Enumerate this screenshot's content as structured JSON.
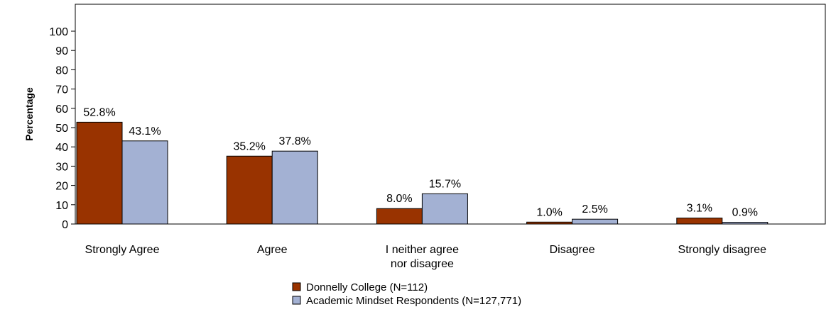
{
  "chart_data": {
    "type": "bar",
    "ylabel": "Percentage",
    "xlabel": "",
    "ylim": [
      0,
      100
    ],
    "yticks": [
      0,
      10,
      20,
      30,
      40,
      50,
      60,
      70,
      80,
      90,
      100
    ],
    "grid": false,
    "legend_position": "bottom",
    "categories": [
      "Strongly Agree",
      "Agree",
      "I neither agree nor disagree",
      "Disagree",
      "Strongly disagree"
    ],
    "category_lines": [
      [
        "Strongly Agree"
      ],
      [
        "Agree"
      ],
      [
        "I neither agree",
        "nor disagree"
      ],
      [
        "Disagree"
      ],
      [
        "Strongly disagree"
      ]
    ],
    "series": [
      {
        "name": "Donnelly College (N=112)",
        "color": "#993300",
        "values": [
          52.8,
          35.2,
          8.0,
          1.0,
          3.1
        ],
        "labels": [
          "52.8%",
          "35.2%",
          "8.0%",
          "1.0%",
          "3.1%"
        ]
      },
      {
        "name": "Academic Mindset Respondents (N=127,771)",
        "color": "#a3b1d3",
        "values": [
          43.1,
          37.8,
          15.7,
          2.5,
          0.9
        ],
        "labels": [
          "43.1%",
          "37.8%",
          "15.7%",
          "2.5%",
          "0.9%"
        ]
      }
    ]
  }
}
